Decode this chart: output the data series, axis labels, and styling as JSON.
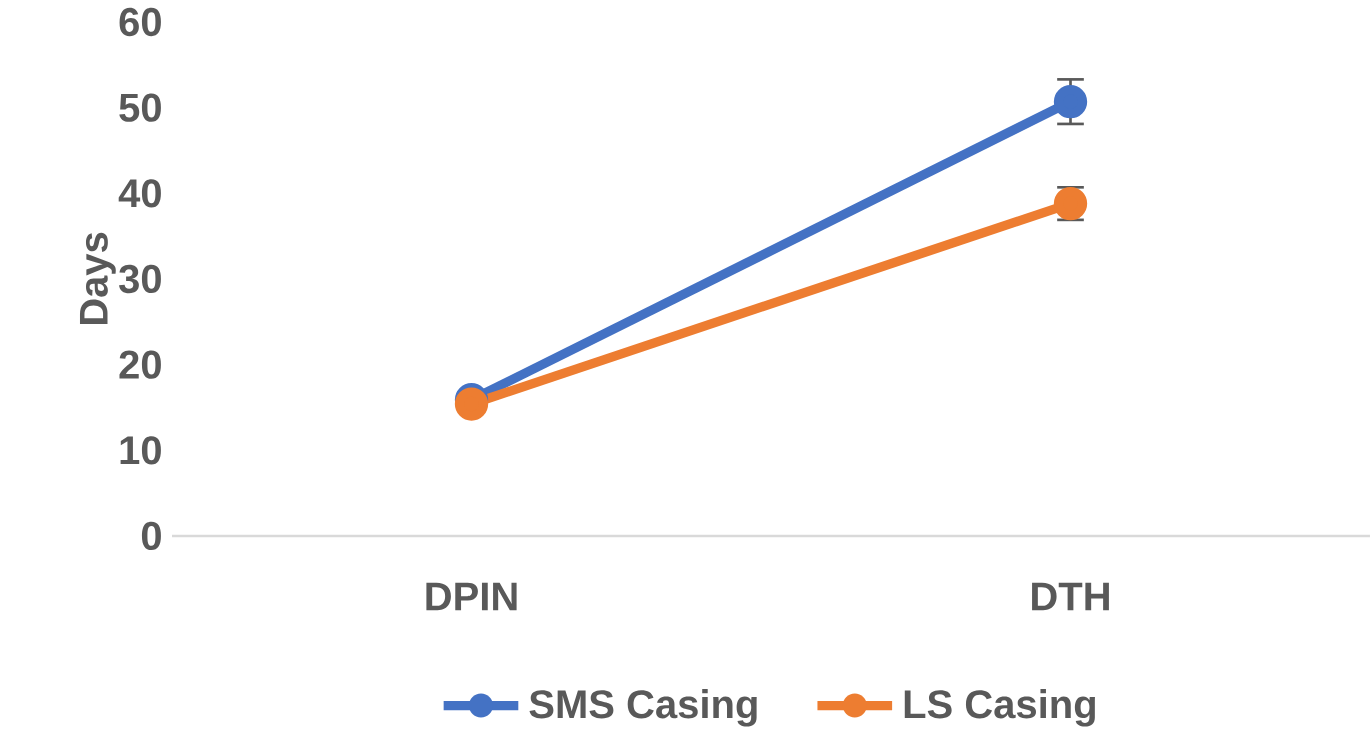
{
  "chart_data": {
    "type": "line",
    "ylabel": "Days",
    "categories": [
      "DPIN",
      "DTH"
    ],
    "series": [
      {
        "name": "SMS Casing",
        "color": "#4472c4",
        "values": [
          15.9,
          50.7
        ],
        "errors": [
          null,
          2.6
        ]
      },
      {
        "name": "LS Casing",
        "color": "#ed7d31",
        "values": [
          15.4,
          38.8
        ],
        "errors": [
          null,
          1.9
        ]
      }
    ],
    "ylim": [
      0,
      60
    ],
    "yticks": [
      0,
      10,
      20,
      30,
      40,
      50,
      60
    ],
    "grid": false,
    "legend": "bottom",
    "marker": "circle",
    "line_style": "solid"
  }
}
